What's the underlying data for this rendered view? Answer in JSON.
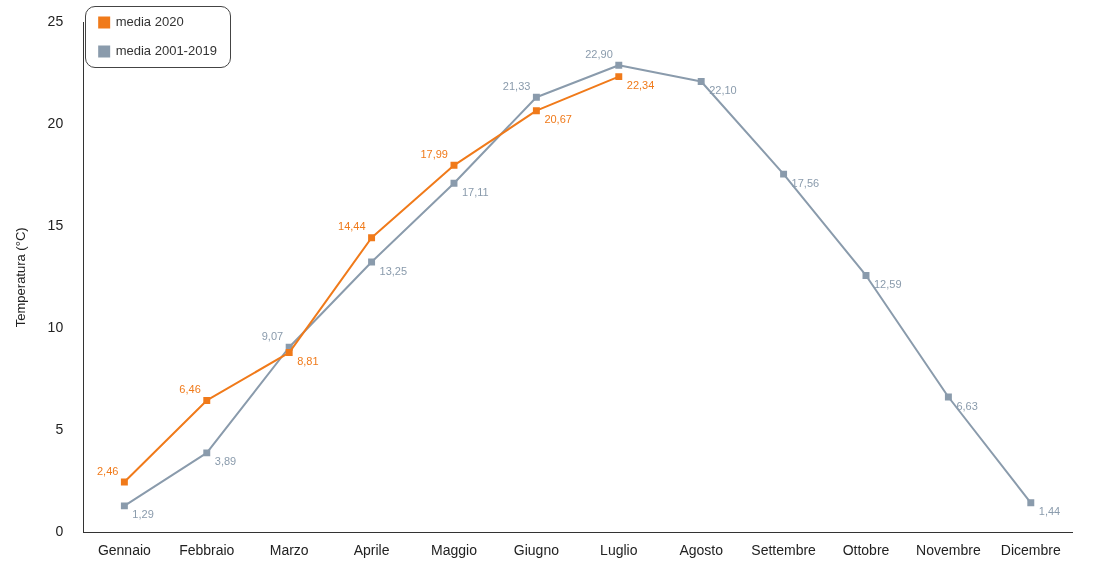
{
  "chart_data": {
    "type": "line",
    "ylabel": "Temperatura (°C)",
    "categories": [
      "Gennaio",
      "Febbraio",
      "Marzo",
      "Aprile",
      "Maggio",
      "Giugno",
      "Luglio",
      "Agosto",
      "Settembre",
      "Ottobre",
      "Novembre",
      "Dicembre"
    ],
    "series": [
      {
        "name": "media 2020",
        "color": "#f07a1a",
        "values": [
          2.46,
          6.46,
          8.81,
          14.44,
          17.99,
          20.67,
          22.34,
          null,
          null,
          null,
          null,
          null
        ],
        "value_labels": [
          "2,46",
          "6,46",
          "8,81",
          "14,44",
          "17,99",
          "20,67",
          "22,34",
          null,
          null,
          null,
          null,
          null
        ]
      },
      {
        "name": "media 2001-2019",
        "color": "#8a9bac",
        "values": [
          1.29,
          3.89,
          9.07,
          13.25,
          17.11,
          21.33,
          22.9,
          22.1,
          17.56,
          12.59,
          6.63,
          1.44
        ],
        "value_labels": [
          "1,29",
          "3,89",
          "9,07",
          "13,25",
          "17,11",
          "21,33",
          "22,90",
          "22,10",
          "17,56",
          "12,59",
          "6,63",
          "1,44"
        ]
      }
    ],
    "ylim": [
      0,
      25
    ],
    "yticks": [
      0,
      5,
      10,
      15,
      20,
      25
    ],
    "grid": false,
    "legend": "top left",
    "marker": "square",
    "line_style": "solid"
  }
}
